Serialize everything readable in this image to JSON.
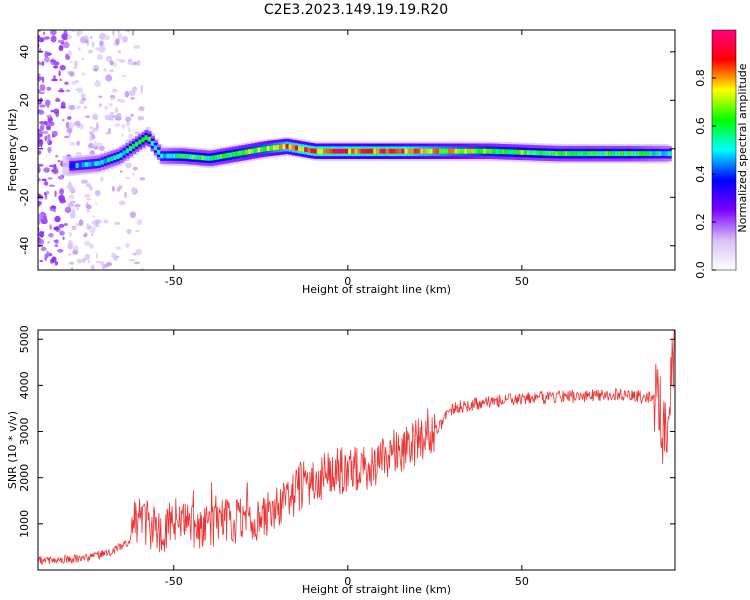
{
  "title": "C2E3.2023.149.19.19.R20",
  "chart_data": [
    {
      "type": "heatmap",
      "title": "C2E3.2023.149.19.19.R20",
      "xlabel": "Height of straight line (km)",
      "ylabel": "Frequency (Hz)",
      "xlim": [
        -89,
        94
      ],
      "ylim": [
        -50,
        49
      ],
      "xticks": [
        -50,
        0,
        50
      ],
      "yticks": [
        -40,
        -20,
        0,
        20,
        40
      ],
      "colorbar": {
        "label": "Normalized spectral amplitude",
        "range": [
          0,
          1
        ],
        "ticks": [
          0.0,
          0.2,
          0.4,
          0.6,
          0.8
        ],
        "colors": [
          "#ffffff",
          "#d8c0f6",
          "#7b00ff",
          "#0000ff",
          "#00ffff",
          "#00ff00",
          "#ffff00",
          "#ff0000",
          "#ff0080"
        ]
      },
      "ridge": {
        "x": [
          -79,
          -72,
          -66,
          -62,
          -58,
          -54,
          -48,
          -40,
          -32,
          -24,
          -18,
          -10,
          0,
          10,
          20,
          40,
          60,
          80,
          92
        ],
        "frequency": [
          -7,
          -6,
          -3,
          1,
          5,
          -3,
          -3,
          -4,
          -2,
          0,
          1,
          -1,
          -1,
          -1,
          -1,
          -1,
          -2,
          -2,
          -2
        ],
        "amplitude": [
          0.45,
          0.5,
          0.55,
          0.55,
          0.6,
          0.5,
          0.6,
          0.6,
          0.65,
          0.7,
          0.8,
          0.85,
          0.85,
          0.9,
          0.8,
          0.65,
          0.6,
          0.6,
          0.5
        ]
      },
      "grid": false
    },
    {
      "type": "line",
      "xlabel": "Height of straight line (km)",
      "ylabel": "SNR (10 * v/v)",
      "xlim": [
        -89,
        94
      ],
      "ylim": [
        0,
        5200
      ],
      "xticks": [
        -50,
        0,
        50
      ],
      "yticks": [
        1000,
        2000,
        3000,
        4000,
        5000
      ],
      "color": "#ee3333",
      "envelope": {
        "x": [
          -89,
          -75,
          -68,
          -63,
          -61,
          -55,
          -40,
          -30,
          -20,
          -12,
          -5,
          5,
          15,
          25,
          30,
          40,
          60,
          80,
          89,
          91,
          92,
          93,
          94
        ],
        "y": [
          200,
          250,
          400,
          600,
          1100,
          900,
          1000,
          1050,
          1300,
          1900,
          2100,
          2200,
          2600,
          3000,
          3500,
          3650,
          3750,
          3800,
          3700,
          3000,
          2600,
          4500,
          4800
        ]
      },
      "grid": false
    }
  ]
}
